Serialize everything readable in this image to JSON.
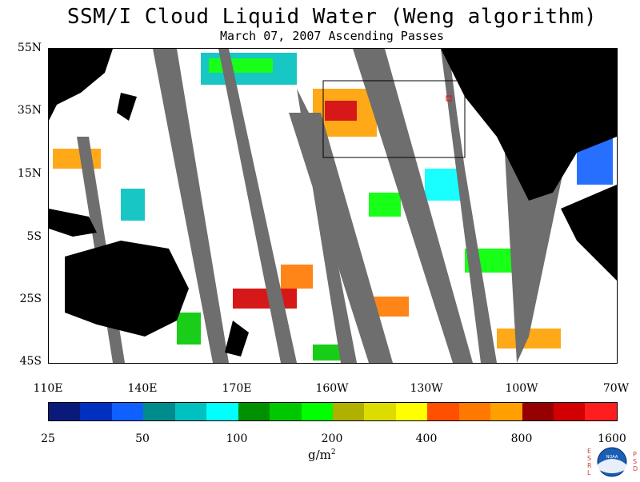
{
  "header": {
    "title": "SSM/I Cloud Liquid Water (Weng algorithm)",
    "subtitle": "March 07, 2007  Ascending Passes"
  },
  "map": {
    "lat_ticks": [
      "55N",
      "35N",
      "15N",
      "5S",
      "25S",
      "45S"
    ],
    "lon_ticks": [
      "110E",
      "140E",
      "170E",
      "160W",
      "130W",
      "100W",
      "70W"
    ],
    "colors": {
      "land": "#000000",
      "no_data": "#6e6e6e",
      "clear": "#ffffff",
      "box": "#000000",
      "marker": "#ff0000"
    }
  },
  "colorbar": {
    "labels": [
      "25",
      "50",
      "100",
      "200",
      "400",
      "800",
      "1600"
    ],
    "colors": [
      "#0a1a7a",
      "#0030c0",
      "#1060ff",
      "#008c8c",
      "#00c0c0",
      "#00ffff",
      "#009000",
      "#00c800",
      "#00ff00",
      "#b0b000",
      "#dcdc00",
      "#ffff00",
      "#ff5000",
      "#ff7800",
      "#ffa000",
      "#960000",
      "#d20000",
      "#ff1e1e"
    ],
    "units_base": "g/m",
    "units_exp": "2"
  },
  "logo": {
    "left_letters": "ESRL",
    "right_letters": "PSD",
    "center": "NOAA"
  }
}
